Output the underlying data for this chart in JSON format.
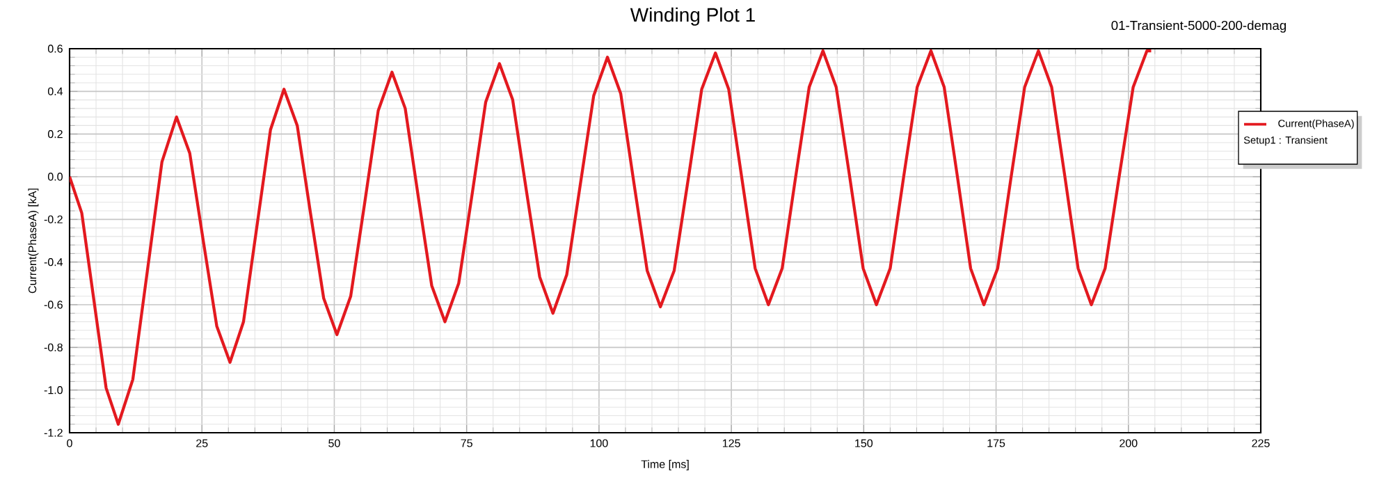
{
  "chart_data": {
    "type": "line",
    "title": "Winding Plot 1",
    "xlabel": "Time [ms]",
    "ylabel": "Current(PhaseA) [kA]",
    "annotations": [
      "01-Transient-5000-200-demag"
    ],
    "legend_title": "Setup1 : Transient",
    "x": [
      0,
      2.3,
      4.6,
      6.9,
      9.2,
      11.95,
      14.7,
      17.45,
      20.2,
      22.7,
      25.25,
      27.8,
      30.3,
      32.85,
      35.4,
      37.95,
      40.5,
      43,
      45.5,
      48,
      50.5,
      53.1,
      55.7,
      58.3,
      60.9,
      63.4,
      65.9,
      68.4,
      70.9,
      73.5,
      76.05,
      78.6,
      81.2,
      83.7,
      86.25,
      88.8,
      91.3,
      93.9,
      96.45,
      99,
      101.6,
      104.1,
      106.6,
      109.1,
      111.6,
      114.2,
      116.8,
      119.4,
      122,
      124.5,
      127,
      129.5,
      132,
      134.6,
      137.15,
      139.7,
      142.3,
      144.8,
      147.35,
      149.9,
      152.4,
      155,
      157.55,
      160.1,
      162.7,
      165.2,
      167.7,
      170.2,
      172.7,
      175.3,
      177.85,
      180.4,
      183,
      185.5,
      188,
      190.5,
      193,
      195.6,
      198.25,
      200.9,
      203.5,
      204.3
    ],
    "series": [
      {
        "name": "Current(PhaseA)",
        "color": "#e3191f",
        "values": [
          0,
          -0.17,
          -0.58,
          -0.99,
          -1.16,
          -0.95,
          -0.44,
          0.07,
          0.28,
          0.11,
          -0.3,
          -0.7,
          -0.87,
          -0.68,
          -0.23,
          0.22,
          0.41,
          0.24,
          -0.17,
          -0.57,
          -0.74,
          -0.56,
          -0.13,
          0.31,
          0.49,
          0.32,
          -0.1,
          -0.51,
          -0.68,
          -0.5,
          -0.08,
          0.35,
          0.53,
          0.36,
          -0.06,
          -0.47,
          -0.64,
          -0.46,
          -0.04,
          0.38,
          0.56,
          0.39,
          -0.03,
          -0.44,
          -0.61,
          -0.44,
          -0.02,
          0.41,
          0.58,
          0.41,
          -0.01,
          -0.43,
          -0.6,
          -0.43,
          0,
          0.42,
          0.59,
          0.42,
          0,
          -0.43,
          -0.6,
          -0.43,
          0,
          0.42,
          0.59,
          0.42,
          0,
          -0.43,
          -0.6,
          -0.43,
          0,
          0.42,
          0.59,
          0.42,
          0,
          -0.43,
          -0.6,
          -0.43,
          0,
          0.42,
          0.59,
          0.59
        ]
      }
    ],
    "xlim": [
      0,
      225
    ],
    "ylim": [
      -1.2,
      0.6
    ],
    "xticks": [
      0,
      25,
      50,
      75,
      100,
      125,
      150,
      175,
      200,
      225
    ],
    "yticks": [
      {
        "value": -1.2,
        "label": "-1.2"
      },
      {
        "value": -1.0,
        "label": "-1.0"
      },
      -0.8,
      -0.6,
      -0.4,
      -0.2,
      {
        "value": 0,
        "label": "0.0"
      },
      0.2,
      0.4,
      0.6
    ],
    "grid": true,
    "legend": "right"
  }
}
